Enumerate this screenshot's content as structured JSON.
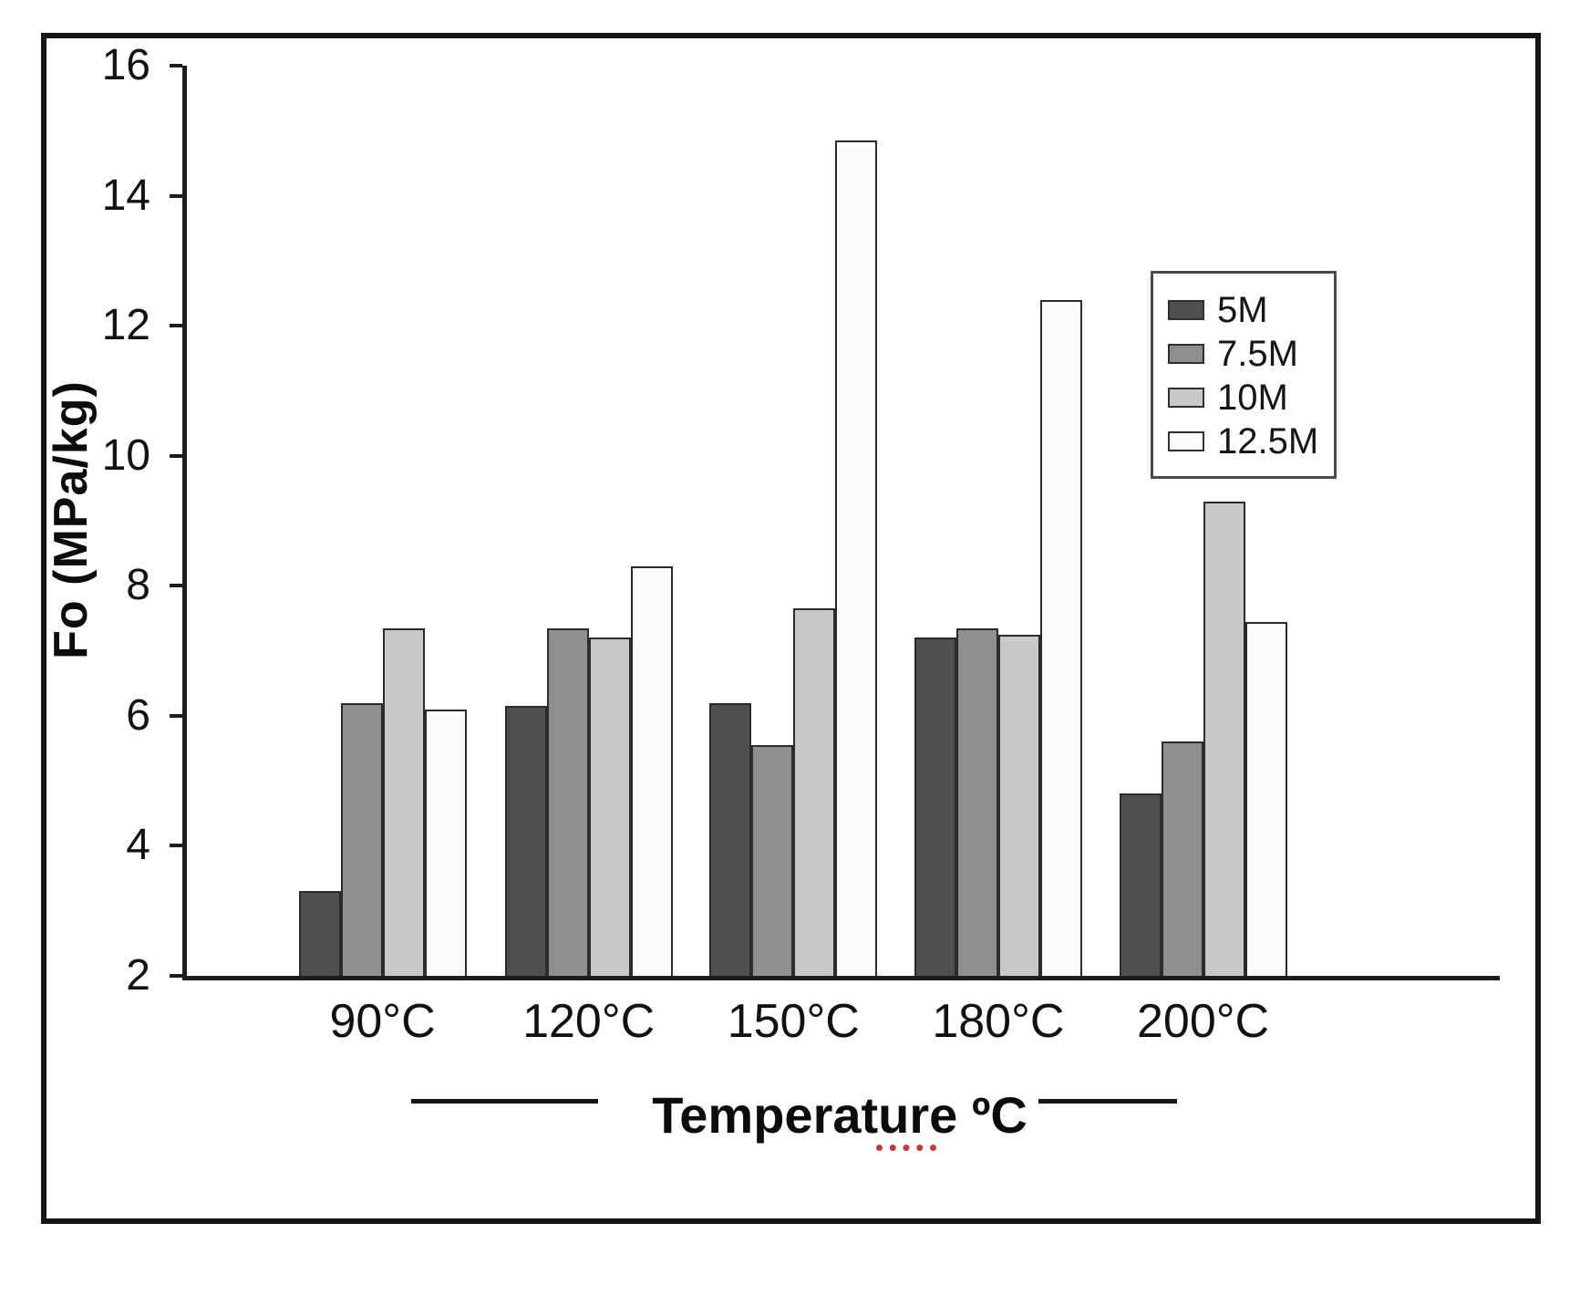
{
  "figure": {
    "background": "#ffffff",
    "border_color": "#151515"
  },
  "chart_data": {
    "type": "bar",
    "title": "",
    "xlabel": "Temperature ºC",
    "ylabel": "Fo (MPa/kg)",
    "categories": [
      "90°C",
      "120°C",
      "150°C",
      "180°C",
      "200°C"
    ],
    "series": [
      {
        "name": "5M",
        "color": "#4f4f4f",
        "values": [
          3.3,
          6.15,
          6.2,
          7.2,
          4.8
        ]
      },
      {
        "name": "7.5M",
        "color": "#8f8f8f",
        "values": [
          6.2,
          7.35,
          5.55,
          7.35,
          5.6
        ]
      },
      {
        "name": "10M",
        "color": "#c9c9c9",
        "values": [
          7.35,
          7.2,
          7.65,
          7.25,
          9.3
        ]
      },
      {
        "name": "12.5M",
        "color": "#fbfbfb",
        "values": [
          6.1,
          8.3,
          14.85,
          12.4,
          7.45
        ]
      }
    ],
    "ylim": [
      2,
      16
    ],
    "yticks": [
      2,
      4,
      6,
      8,
      10,
      12,
      14,
      16
    ],
    "grid": false,
    "legend_position": "upper right",
    "bar_border_color": "#2b2b2b",
    "axis_color": "#1c1c1c"
  }
}
